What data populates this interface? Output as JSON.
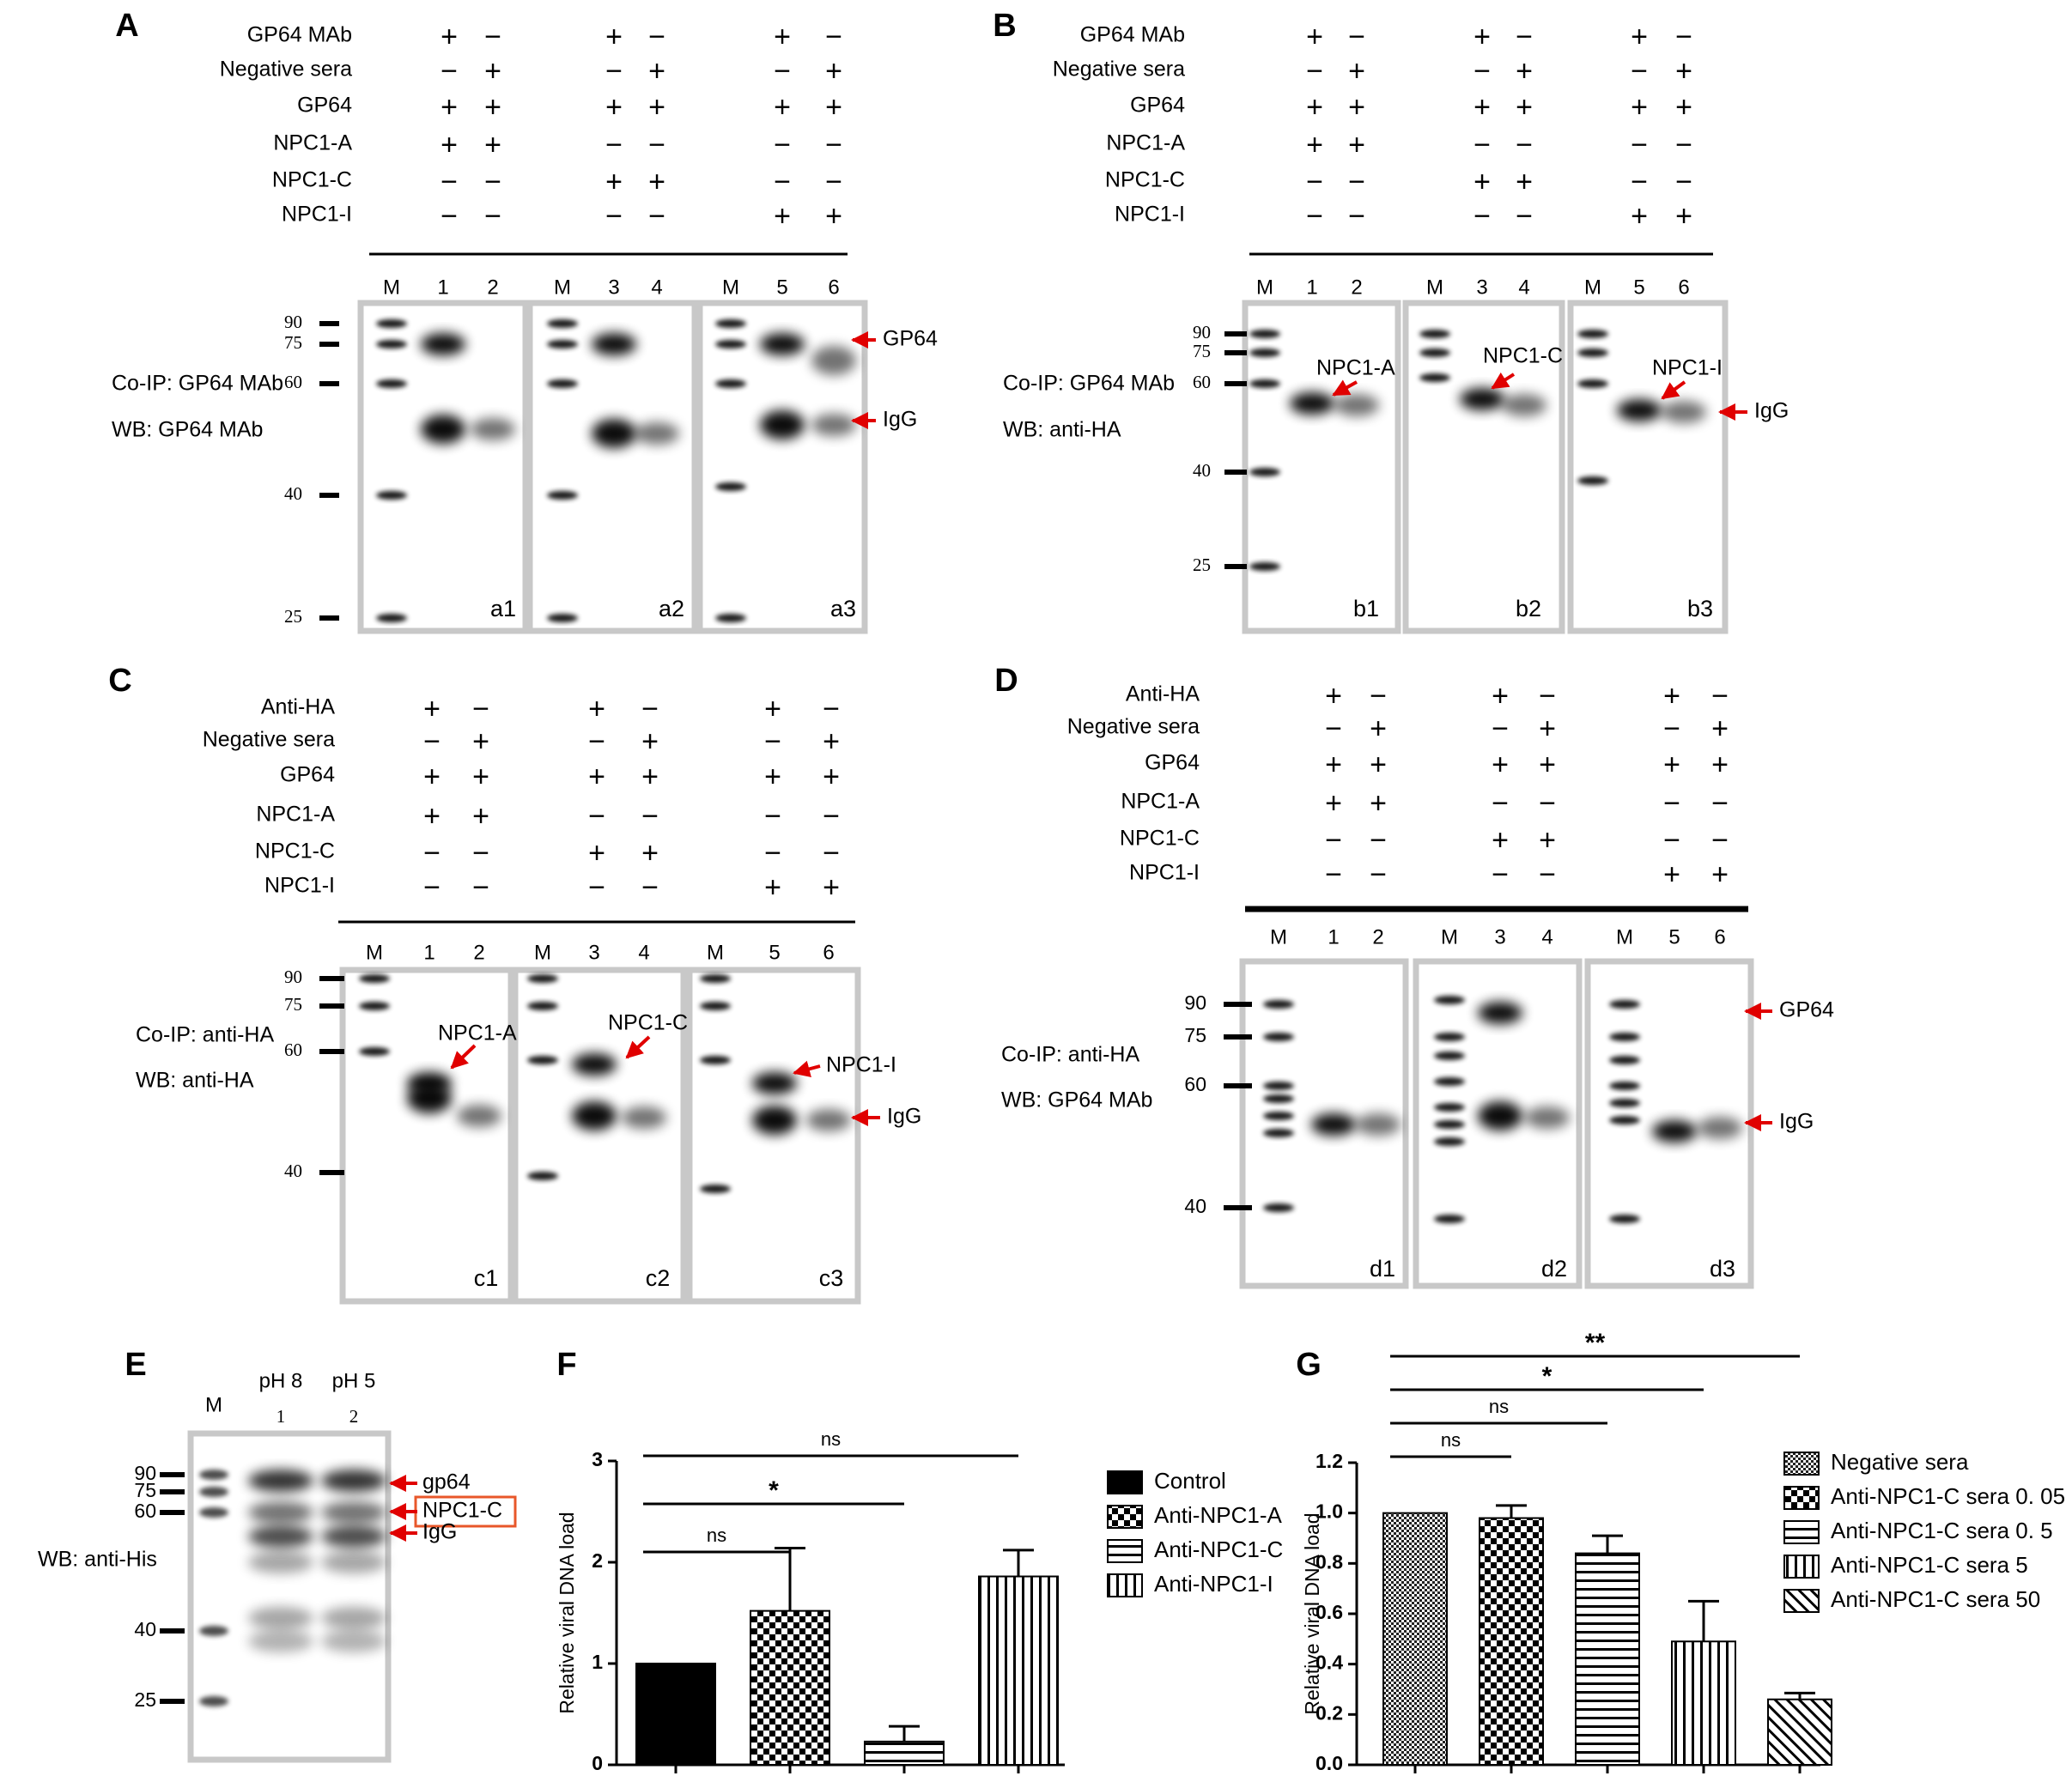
{
  "panels": {
    "A": {
      "letter": "A",
      "conditions": [
        "GP64 MAb",
        "Negative sera",
        "GP64",
        "NPC1-A",
        "NPC1-C",
        "NPC1-I"
      ],
      "signs": [
        [
          "+",
          "−",
          "+",
          "−",
          "+",
          "−"
        ],
        [
          "−",
          "+",
          "−",
          "+",
          "−",
          "+"
        ],
        [
          "+",
          "+",
          "+",
          "+",
          "+",
          "+"
        ],
        [
          "+",
          "+",
          "−",
          "−",
          "−",
          "−"
        ],
        [
          "−",
          "−",
          "+",
          "+",
          "−",
          "−"
        ],
        [
          "−",
          "−",
          "−",
          "−",
          "+",
          "+"
        ]
      ],
      "lane_labels": [
        "M",
        "1",
        "2",
        "M",
        "3",
        "4",
        "M",
        "5",
        "6"
      ],
      "mw_markers": [
        "90",
        "75",
        "60",
        "40",
        "25"
      ],
      "side_text": [
        "Co-IP: GP64 MAb",
        "WB: GP64 MAb"
      ],
      "sub_panels": [
        "a1",
        "a2",
        "a3"
      ],
      "arrows": [
        "GP64",
        "IgG"
      ]
    },
    "B": {
      "letter": "B",
      "conditions": [
        "GP64 MAb",
        "Negative sera",
        "GP64",
        "NPC1-A",
        "NPC1-C",
        "NPC1-I"
      ],
      "signs": [
        [
          "+",
          "−",
          "+",
          "−",
          "+",
          "−"
        ],
        [
          "−",
          "+",
          "−",
          "+",
          "−",
          "+"
        ],
        [
          "+",
          "+",
          "+",
          "+",
          "+",
          "+"
        ],
        [
          "+",
          "+",
          "−",
          "−",
          "−",
          "−"
        ],
        [
          "−",
          "−",
          "+",
          "+",
          "−",
          "−"
        ],
        [
          "−",
          "−",
          "−",
          "−",
          "+",
          "+"
        ]
      ],
      "lane_labels": [
        "M",
        "1",
        "2",
        "M",
        "3",
        "4",
        "M",
        "5",
        "6"
      ],
      "mw_markers": [
        "90",
        "75",
        "60",
        "40",
        "25"
      ],
      "side_text": [
        "Co-IP: GP64 MAb",
        "WB: anti-HA"
      ],
      "sub_panels": [
        "b1",
        "b2",
        "b3"
      ],
      "band_labels": [
        "NPC1-A",
        "NPC1-C",
        "NPC1-I"
      ],
      "arrows": [
        "IgG"
      ]
    },
    "C": {
      "letter": "C",
      "conditions": [
        "Anti-HA",
        "Negative sera",
        "GP64",
        "NPC1-A",
        "NPC1-C",
        "NPC1-I"
      ],
      "signs": [
        [
          "+",
          "−",
          "+",
          "−",
          "+",
          "−"
        ],
        [
          "−",
          "+",
          "−",
          "+",
          "−",
          "+"
        ],
        [
          "+",
          "+",
          "+",
          "+",
          "+",
          "+"
        ],
        [
          "+",
          "+",
          "−",
          "−",
          "−",
          "−"
        ],
        [
          "−",
          "−",
          "+",
          "+",
          "−",
          "−"
        ],
        [
          "−",
          "−",
          "−",
          "−",
          "+",
          "+"
        ]
      ],
      "lane_labels": [
        "M",
        "1",
        "2",
        "M",
        "3",
        "4",
        "M",
        "5",
        "6"
      ],
      "mw_markers": [
        "90",
        "75",
        "60",
        "40"
      ],
      "side_text": [
        "Co-IP: anti-HA",
        "WB: anti-HA"
      ],
      "sub_panels": [
        "c1",
        "c2",
        "c3"
      ],
      "band_labels": [
        "NPC1-A",
        "NPC1-C",
        "NPC1-I"
      ],
      "arrows": [
        "IgG"
      ]
    },
    "D": {
      "letter": "D",
      "conditions": [
        "Anti-HA",
        "Negative sera",
        "GP64",
        "NPC1-A",
        "NPC1-C",
        "NPC1-I"
      ],
      "signs": [
        [
          "+",
          "−",
          "+",
          "−",
          "+",
          "−"
        ],
        [
          "−",
          "+",
          "−",
          "+",
          "−",
          "+"
        ],
        [
          "+",
          "+",
          "+",
          "+",
          "+",
          "+"
        ],
        [
          "+",
          "+",
          "−",
          "−",
          "−",
          "−"
        ],
        [
          "−",
          "−",
          "+",
          "+",
          "−",
          "−"
        ],
        [
          "−",
          "−",
          "−",
          "−",
          "+",
          "+"
        ]
      ],
      "lane_labels": [
        "M",
        "1",
        "2",
        "M",
        "3",
        "4",
        "M",
        "5",
        "6"
      ],
      "mw_markers": [
        "90",
        "75",
        "60",
        "40"
      ],
      "side_text": [
        "Co-IP: anti-HA",
        "WB: GP64 MAb"
      ],
      "sub_panels": [
        "d1",
        "d2",
        "d3"
      ],
      "arrows": [
        "GP64",
        "IgG"
      ]
    },
    "E": {
      "letter": "E",
      "lane_labels": [
        "M",
        "pH 8",
        "pH 5"
      ],
      "lane_numbers": [
        "1",
        "2"
      ],
      "mw_markers": [
        "90",
        "75",
        "60",
        "40",
        "25"
      ],
      "side_text": "WB: anti-His",
      "arrows": [
        "gp64",
        "NPC1-C",
        "IgG"
      ],
      "highlight_color": "#e8572a"
    }
  },
  "chart_data": [
    {
      "panel": "F",
      "type": "bar",
      "categories": [
        "Control",
        "Anti-NPC1-A",
        "Anti-NPC1-C",
        "Anti-NPC1-I"
      ],
      "values": [
        1.0,
        1.52,
        0.23,
        1.86
      ],
      "errors": [
        0,
        0.62,
        0.15,
        0.26
      ],
      "patterns": [
        "solid",
        "checker",
        "hstripe",
        "vstripe"
      ],
      "ylabel": "Relative viral DNA load",
      "ylim": [
        0,
        3
      ],
      "yticks": [
        "0",
        "1",
        "2",
        "3"
      ],
      "significance": [
        {
          "from": 0,
          "to": 1,
          "label": "ns"
        },
        {
          "from": 0,
          "to": 2,
          "label": "*"
        },
        {
          "from": 0,
          "to": 3,
          "label": "ns"
        }
      ],
      "legend": [
        "Control",
        "Anti-NPC1-A",
        "Anti-NPC1-C",
        "Anti-NPC1-I"
      ]
    },
    {
      "panel": "G",
      "type": "bar",
      "categories": [
        "Negative sera",
        "Anti-NPC1-C sera 0.05",
        "Anti-NPC1-C sera 0.5",
        "Anti-NPC1-C sera 5",
        "Anti-NPC1-C sera 50"
      ],
      "values": [
        1.0,
        0.98,
        0.84,
        0.49,
        0.26
      ],
      "errors": [
        0,
        0.05,
        0.07,
        0.16,
        0.025
      ],
      "patterns": [
        "fine",
        "checker",
        "hstripe",
        "vstripe",
        "diag"
      ],
      "ylabel": "Relative viral DNA load",
      "ylim": [
        0,
        1.2
      ],
      "yticks": [
        "0.0",
        "0.2",
        "0.4",
        "0.6",
        "0.8",
        "1.0",
        "1.2"
      ],
      "significance": [
        {
          "from": 0,
          "to": 1,
          "label": "ns"
        },
        {
          "from": 0,
          "to": 2,
          "label": "ns"
        },
        {
          "from": 0,
          "to": 3,
          "label": "*"
        },
        {
          "from": 0,
          "to": 4,
          "label": "**"
        }
      ],
      "legend_prefix": [
        "Negative sera",
        "Anti-NPC1-C sera",
        "Anti-NPC1-C sera",
        "Anti-NPC1-C sera",
        "Anti-NPC1-C sera"
      ],
      "legend_dose": [
        "",
        "0. 05",
        "0. 5",
        "5",
        "50"
      ]
    }
  ]
}
